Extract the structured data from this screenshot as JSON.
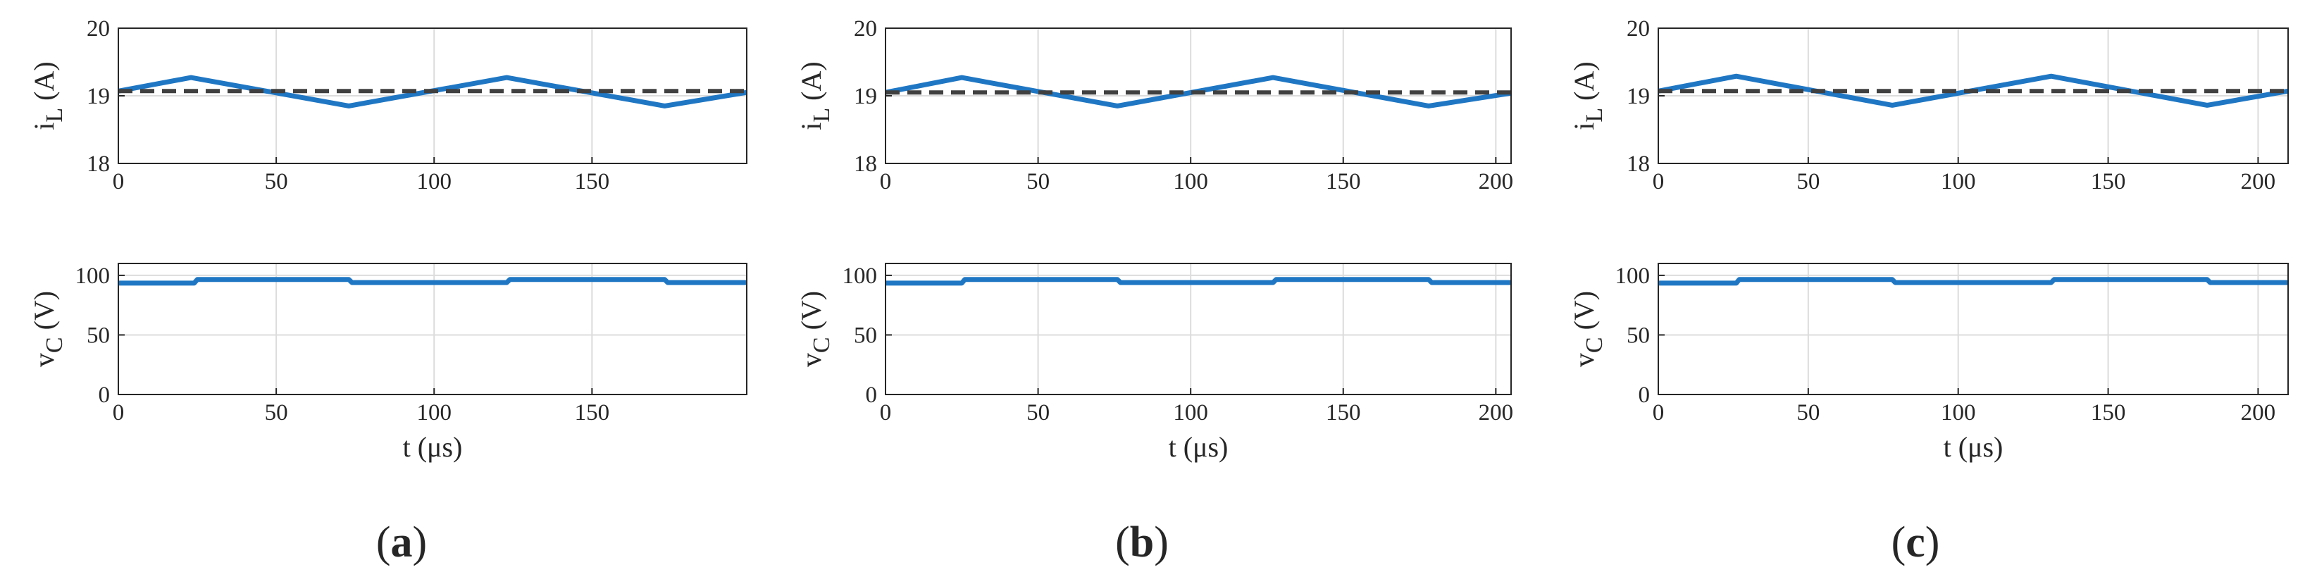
{
  "colors": {
    "series": "#1f77c4",
    "mean": "#404040",
    "axes": "#262626",
    "grid": "#dcdcdc"
  },
  "chart_data": [
    {
      "type": "line",
      "panel": "a",
      "row": "top",
      "ylabel": "i",
      "ylabel_sub": "L",
      "ylabel_unit": "(A)",
      "xlabel": "",
      "xlim": [
        0,
        199
      ],
      "ylim": [
        18,
        20
      ],
      "xticks": [
        0,
        50,
        100,
        150
      ],
      "yticks": [
        18,
        19,
        20
      ],
      "grid": true,
      "series": [
        {
          "style": "solid",
          "x": [
            0,
            23,
            73,
            123,
            173,
            199
          ],
          "y": [
            19.07,
            19.27,
            18.85,
            19.27,
            18.85,
            19.05
          ]
        },
        {
          "style": "dashed",
          "x": [
            0,
            199
          ],
          "y": [
            19.07,
            19.07
          ]
        }
      ]
    },
    {
      "type": "line",
      "panel": "b",
      "row": "top",
      "ylabel": "i",
      "ylabel_sub": "L",
      "ylabel_unit": "(A)",
      "xlabel": "",
      "xlim": [
        0,
        205
      ],
      "ylim": [
        18,
        20
      ],
      "xticks": [
        0,
        50,
        100,
        150,
        200
      ],
      "yticks": [
        18,
        19,
        20
      ],
      "grid": true,
      "series": [
        {
          "style": "solid",
          "x": [
            0,
            25,
            76,
            127,
            178,
            205
          ],
          "y": [
            19.05,
            19.27,
            18.85,
            19.27,
            18.85,
            19.04
          ]
        },
        {
          "style": "dashed",
          "x": [
            0,
            205
          ],
          "y": [
            19.05,
            19.05
          ]
        }
      ]
    },
    {
      "type": "line",
      "panel": "c",
      "row": "top",
      "ylabel": "i",
      "ylabel_sub": "L",
      "ylabel_unit": "(A)",
      "xlabel": "",
      "xlim": [
        0,
        210
      ],
      "ylim": [
        18,
        20
      ],
      "xticks": [
        0,
        50,
        100,
        150,
        200
      ],
      "yticks": [
        18,
        19,
        20
      ],
      "grid": true,
      "series": [
        {
          "style": "solid",
          "x": [
            0,
            26,
            78,
            131,
            183,
            210
          ],
          "y": [
            19.07,
            19.29,
            18.86,
            19.29,
            18.86,
            19.07
          ]
        },
        {
          "style": "dashed",
          "x": [
            0,
            210
          ],
          "y": [
            19.07,
            19.07
          ]
        }
      ]
    },
    {
      "type": "line",
      "panel": "a",
      "row": "bottom",
      "ylabel": "v",
      "ylabel_sub": "C",
      "ylabel_unit": "(V)",
      "xlabel": "t (μs)",
      "xlim": [
        0,
        199
      ],
      "ylim": [
        0,
        110
      ],
      "xticks": [
        0,
        50,
        100,
        150
      ],
      "yticks": [
        0,
        50,
        100
      ],
      "grid": true,
      "series": [
        {
          "style": "solid",
          "x": [
            0,
            24,
            25,
            73,
            74,
            123,
            124,
            173,
            174,
            199
          ],
          "y": [
            93.5,
            93.5,
            96.5,
            96.5,
            94,
            94,
            96.5,
            96.5,
            94,
            94
          ]
        }
      ]
    },
    {
      "type": "line",
      "panel": "b",
      "row": "bottom",
      "ylabel": "v",
      "ylabel_sub": "C",
      "ylabel_unit": "(V)",
      "xlabel": "t (μs)",
      "xlim": [
        0,
        205
      ],
      "ylim": [
        0,
        110
      ],
      "xticks": [
        0,
        50,
        100,
        150,
        200
      ],
      "yticks": [
        0,
        50,
        100
      ],
      "grid": true,
      "series": [
        {
          "style": "solid",
          "x": [
            0,
            25,
            26,
            76,
            77,
            127,
            128,
            178,
            179,
            205
          ],
          "y": [
            93.5,
            93.5,
            96.5,
            96.5,
            94,
            94,
            96.5,
            96.5,
            94,
            94
          ]
        }
      ]
    },
    {
      "type": "line",
      "panel": "c",
      "row": "bottom",
      "ylabel": "v",
      "ylabel_sub": "C",
      "ylabel_unit": "(V)",
      "xlabel": "t (μs)",
      "xlim": [
        0,
        210
      ],
      "ylim": [
        0,
        110
      ],
      "xticks": [
        0,
        50,
        100,
        150,
        200
      ],
      "yticks": [
        0,
        50,
        100
      ],
      "grid": true,
      "series": [
        {
          "style": "solid",
          "x": [
            0,
            26,
            27,
            78,
            79,
            131,
            132,
            183,
            184,
            210
          ],
          "y": [
            93.5,
            93.5,
            96.5,
            96.5,
            94,
            94,
            96.5,
            96.5,
            94,
            94
          ]
        }
      ]
    }
  ],
  "panel_labels": [
    {
      "open": "(",
      "letter": "a",
      "close": ")"
    },
    {
      "open": "(",
      "letter": "b",
      "close": ")"
    },
    {
      "open": "(",
      "letter": "c",
      "close": ")"
    }
  ]
}
